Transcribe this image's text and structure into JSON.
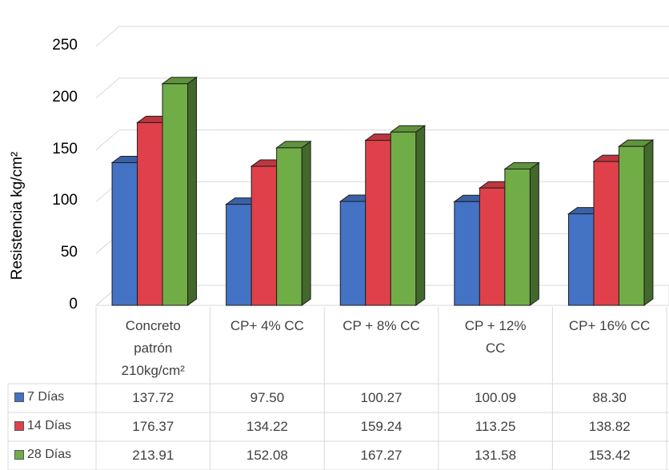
{
  "chart_data": {
    "type": "bar",
    "ylabel": "Resistencia kg/cm²",
    "ylim": [
      0,
      250
    ],
    "yticks": [
      "0",
      "50",
      "100",
      "150",
      "200",
      "250"
    ],
    "categories": [
      [
        "Concreto",
        "patrón",
        "210kg/cm²"
      ],
      [
        "CP+ 4% CC"
      ],
      [
        "CP + 8% CC"
      ],
      [
        "CP + 12%",
        "CC"
      ],
      [
        "CP+ 16% CC"
      ]
    ],
    "series": [
      {
        "name": "7 Días",
        "color": "#4472c4",
        "values": [
          137.72,
          97.5,
          100.27,
          100.09,
          88.3
        ],
        "labels": [
          "137.72",
          "97.50",
          "100.27",
          "100.09",
          "88.30"
        ]
      },
      {
        "name": "14 Días",
        "color": "#e0404a",
        "values": [
          176.37,
          134.22,
          159.24,
          113.25,
          138.82
        ],
        "labels": [
          "176.37",
          "134.22",
          "159.24",
          "113.25",
          "138.82"
        ]
      },
      {
        "name": "28 Días",
        "color": "#70ad47",
        "values": [
          213.91,
          152.08,
          167.27,
          131.58,
          153.42
        ],
        "labels": [
          "213.91",
          "152.08",
          "167.27",
          "131.58",
          "153.42"
        ]
      }
    ],
    "grid": true,
    "legend": "data-table"
  }
}
